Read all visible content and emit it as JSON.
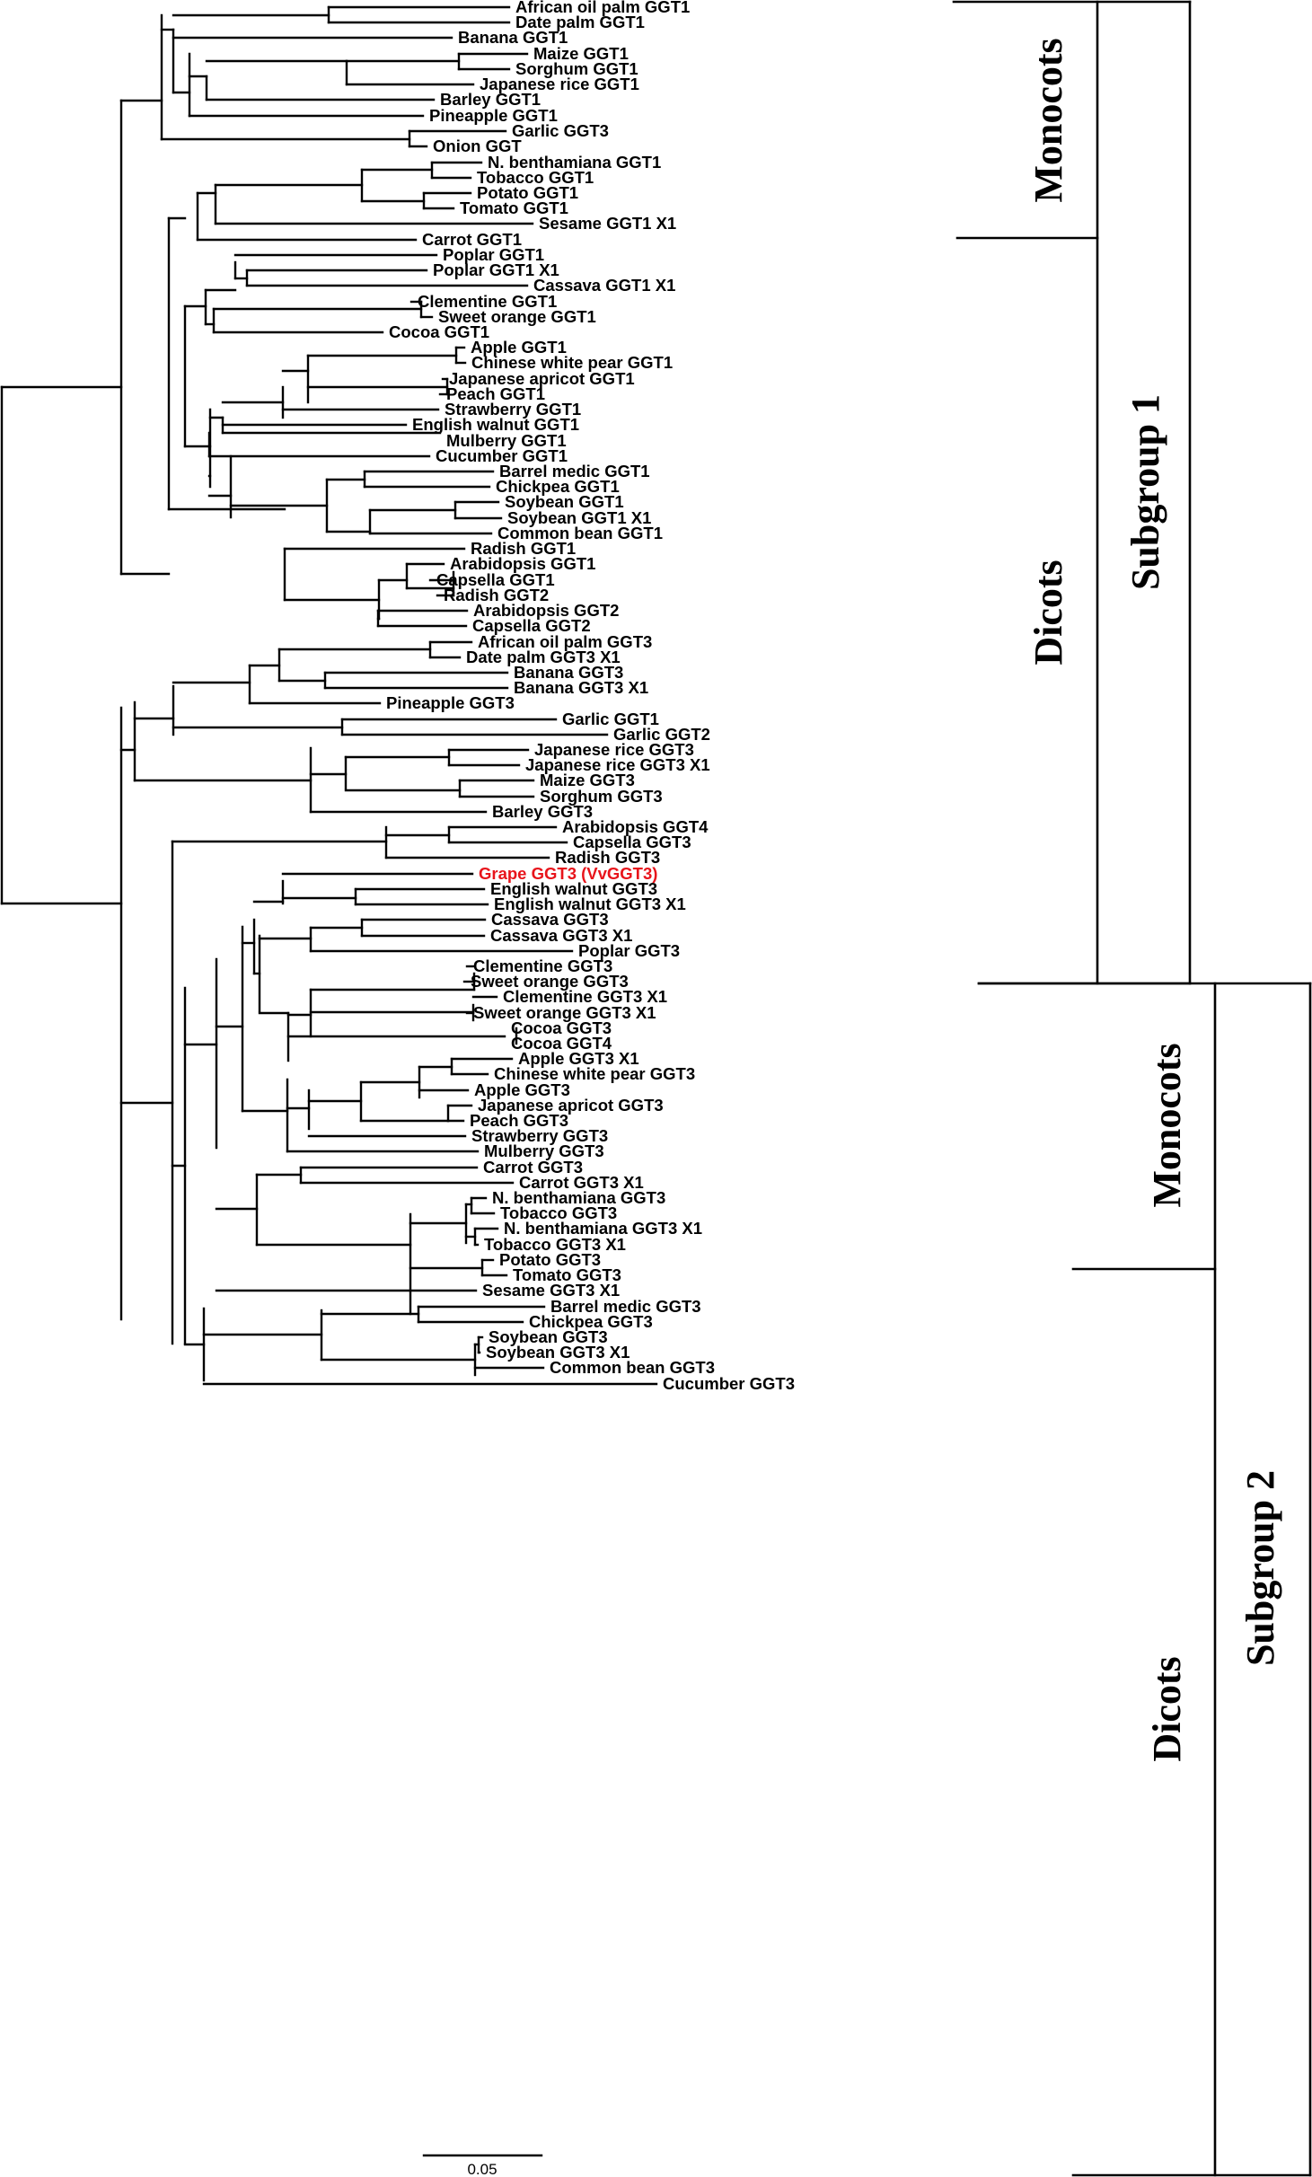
{
  "figure": {
    "leaves": [
      "African oil palm GGT1",
      "Date palm GGT1",
      "Banana GGT1",
      "Maize GGT1",
      "Sorghum GGT1",
      "Japanese rice GGT1",
      "Barley GGT1",
      "Pineapple GGT1",
      "Garlic GGT3",
      "Onion GGT",
      "N. benthamiana GGT1",
      "Tobacco GGT1",
      "Potato GGT1",
      "Tomato GGT1",
      "Sesame GGT1 X1",
      "Carrot GGT1",
      "Poplar GGT1",
      "Poplar GGT1 X1",
      "Cassava GGT1 X1",
      "Clementine GGT1",
      "Sweet orange GGT1",
      "Cocoa GGT1",
      "Apple GGT1",
      "Chinese white pear GGT1",
      "Japanese apricot GGT1",
      "Peach GGT1",
      "Strawberry GGT1",
      "English walnut GGT1",
      "Mulberry GGT1",
      "Cucumber GGT1",
      "Barrel medic GGT1",
      "Chickpea GGT1",
      "Soybean GGT1",
      "Soybean GGT1 X1",
      "Common bean GGT1",
      "Radish GGT1",
      "Arabidopsis GGT1",
      "Capsella GGT1",
      "Radish GGT2",
      "Arabidopsis GGT2",
      "Capsella GGT2",
      "African oil palm GGT3",
      "Date palm GGT3 X1",
      "Banana GGT3",
      "Banana GGT3 X1",
      "Pineapple GGT3",
      "Garlic GGT1",
      "Garlic GGT2",
      "Japanese rice GGT3",
      "Japanese rice GGT3 X1",
      "Maize GGT3",
      "Sorghum GGT3",
      "Barley GGT3",
      "Arabidopsis GGT4",
      "Capsella GGT3",
      "Radish GGT3",
      "Grape GGT3 (VvGGT3)",
      "English walnut GGT3",
      "English walnut GGT3 X1",
      "Cassava GGT3",
      "Cassava GGT3 X1",
      "Poplar GGT3",
      "Clementine GGT3",
      "Sweet orange GGT3",
      "Clementine GGT3 X1",
      "Sweet orange GGT3 X1",
      "Cocoa GGT3",
      "Cocoa GGT4",
      "Apple GGT3 X1",
      "Chinese white pear GGT3",
      "Apple GGT3",
      "Japanese apricot GGT3",
      "Peach GGT3",
      "Strawberry GGT3",
      "Mulberry GGT3",
      "Carrot GGT3",
      "Carrot GGT3 X1",
      "N. benthamiana GGT3",
      "Tobacco GGT3",
      "N. benthamiana GGT3 X1",
      "Tobacco GGT3 X1",
      "Potato GGT3",
      "Tomato GGT3",
      "Sesame GGT3 X1",
      "Barrel medic GGT3",
      "Chickpea GGT3",
      "Soybean GGT3",
      "Soybean GGT3 X1",
      "Common bean GGT3",
      "Cucumber GGT3"
    ],
    "highlight_leaf": "Grape GGT3 (VvGGT3)",
    "highlight_color": "#e8141b",
    "line_color": "#000000",
    "groups": {
      "sub1_monocots": "Monocots",
      "sub1_dicots": "Dicots",
      "subgroup1": "Subgroup 1",
      "sub2_monocots": "Monocots",
      "sub2_dicots": "Dicots",
      "subgroup2": "Subgroup 2"
    },
    "scale_bar": "0.05"
  }
}
